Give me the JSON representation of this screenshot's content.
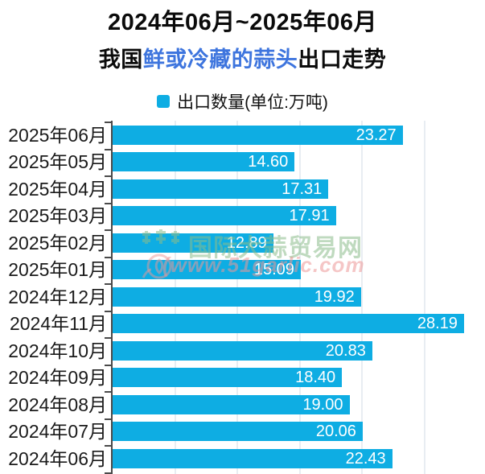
{
  "header": {
    "title_line1": "2024年06月~2025年06月",
    "title_line2_prefix": "我国",
    "title_line2_highlight": "鲜或冷藏的蒜头",
    "title_line2_suffix": "出口走势",
    "highlight_color": "#3e75de"
  },
  "legend": {
    "label": "出口数量(单位:万吨)",
    "swatch_color": "#0eade3"
  },
  "watermark": {
    "site_name": "国际大蒜贸易网",
    "site_url": "(www.51garlic.com",
    "logo": "garlic-logo",
    "name_color": "#8bbc8b",
    "url_color": "#ec9898"
  },
  "chart_data": {
    "type": "bar",
    "orientation": "horizontal",
    "title": "2024年06月~2025年06月 我国鲜或冷藏的蒜头出口走势",
    "series_name": "出口数量",
    "unit": "万吨",
    "categories": [
      "2025年06月",
      "2025年05月",
      "2025年04月",
      "2025年03月",
      "2025年02月",
      "2025年01月",
      "2024年12月",
      "2024年11月",
      "2024年10月",
      "2024年09月",
      "2024年08月",
      "2024年07月",
      "2024年06月"
    ],
    "values": [
      23.27,
      14.6,
      17.31,
      17.91,
      12.89,
      15.09,
      19.92,
      28.19,
      20.83,
      18.4,
      19.0,
      20.06,
      22.43
    ],
    "value_labels": [
      "23.27",
      "14.60",
      "17.31",
      "17.91",
      "12.89",
      "15.09",
      "19.92",
      "28.19",
      "20.83",
      "18.40",
      "19.00",
      "20.06",
      "22.43"
    ],
    "xlim": [
      0,
      30
    ],
    "gridline_values": [
      5,
      10,
      15,
      20,
      25
    ],
    "grid": true,
    "legend_position": "top",
    "bar_color": "#0eade3",
    "value_label_color": "#ffffff",
    "gridline_color": "#e8edf2",
    "axis_color": "#4a4a4a"
  }
}
